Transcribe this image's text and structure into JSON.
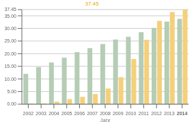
{
  "chart_data": {
    "type": "bar",
    "categories": [
      "2002",
      "2003",
      "2004",
      "2005",
      "2006",
      "2007",
      "2008",
      "2009",
      "2010",
      "2011",
      "2012",
      "2013",
      "2014"
    ],
    "series": [
      {
        "color": "#b5ccb5",
        "values": [
          12.0,
          14.7,
          16.5,
          18.4,
          20.6,
          22.2,
          23.8,
          25.6,
          26.7,
          28.5,
          30.2,
          32.7,
          33.8
        ]
      },
      {
        "color": "#f5d07a",
        "values": [
          0.3,
          0.3,
          1.0,
          2.0,
          2.9,
          4.0,
          6.2,
          10.7,
          17.9,
          25.5,
          33.0,
          36.5,
          37.45
        ]
      }
    ],
    "xlabel": "Jahr",
    "ylim": [
      0,
      37.45
    ],
    "yticks": [
      {
        "value": 0,
        "label": "0.00"
      },
      {
        "value": 5,
        "label": "5.00"
      },
      {
        "value": 10,
        "label": "10.00"
      },
      {
        "value": 15,
        "label": "15.00"
      },
      {
        "value": 20,
        "label": "20.00"
      },
      {
        "value": 25,
        "label": "25.00"
      },
      {
        "value": 30,
        "label": "30.00"
      },
      {
        "value": 35,
        "label": "35.00"
      },
      {
        "value": 37.45,
        "label": "37.45"
      }
    ],
    "grid": true,
    "annotations": [
      {
        "text": "37.45",
        "color": "#e8a000"
      }
    ]
  }
}
